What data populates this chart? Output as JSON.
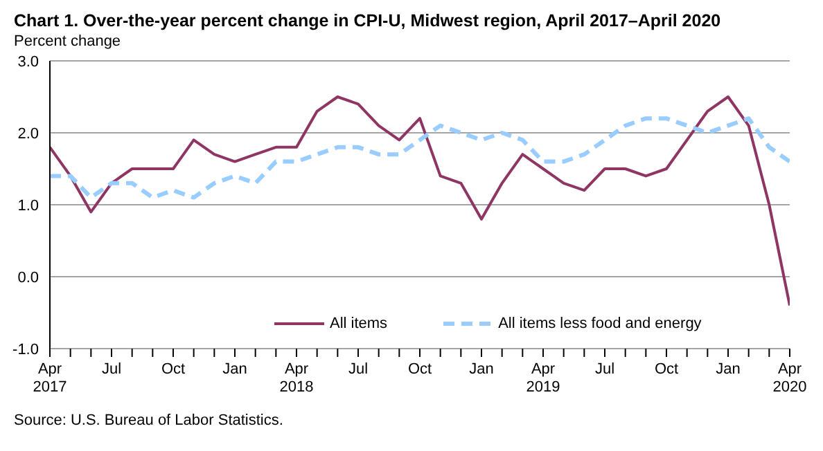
{
  "chart_data": {
    "type": "line",
    "title": "Chart 1. Over-the-year percent change in CPI-U, Midwest region, April 2017–April 2020",
    "ylabel": "Percent change",
    "categories": [
      "Apr 2017",
      null,
      null,
      "Jul",
      null,
      null,
      "Oct",
      null,
      null,
      "Jan",
      null,
      null,
      "Apr 2018",
      null,
      null,
      "Jul",
      null,
      null,
      "Oct",
      null,
      null,
      "Jan",
      null,
      null,
      "Apr 2019",
      null,
      null,
      "Jul",
      null,
      null,
      "Oct",
      null,
      null,
      "Jan",
      null,
      null,
      "Apr 2020"
    ],
    "series": [
      {
        "name": "All items",
        "color": "#8e3563",
        "line_style": "solid",
        "values": [
          1.8,
          1.4,
          0.9,
          1.3,
          1.5,
          1.5,
          1.5,
          1.9,
          1.7,
          1.6,
          1.7,
          1.8,
          1.8,
          2.3,
          2.5,
          2.4,
          2.1,
          1.9,
          2.2,
          1.4,
          1.3,
          0.8,
          1.3,
          1.7,
          1.5,
          1.3,
          1.2,
          1.5,
          1.5,
          1.4,
          1.5,
          1.9,
          2.3,
          2.5,
          2.1,
          1.0,
          -0.4
        ]
      },
      {
        "name": "All items less food and energy",
        "color": "#99ccff",
        "line_style": "dashed",
        "values": [
          1.4,
          1.4,
          1.1,
          1.3,
          1.3,
          1.1,
          1.2,
          1.1,
          1.3,
          1.4,
          1.3,
          1.6,
          1.6,
          1.7,
          1.8,
          1.8,
          1.7,
          1.7,
          1.9,
          2.1,
          2.0,
          1.9,
          2.0,
          1.9,
          1.6,
          1.6,
          1.7,
          1.9,
          2.1,
          2.2,
          2.2,
          2.1,
          2.0,
          2.1,
          2.2,
          1.8,
          1.6
        ]
      }
    ],
    "ylim": [
      -1,
      3
    ],
    "yticks": [
      {
        "value": -1,
        "label": "-1.0"
      },
      {
        "value": 0,
        "label": "0.0"
      },
      {
        "value": 1,
        "label": "1.0"
      },
      {
        "value": 2,
        "label": "2.0"
      },
      {
        "value": 3,
        "label": "3.0"
      }
    ],
    "grid": "y",
    "legend": "bottom",
    "marker": "none",
    "annotations": [
      "Source: U.S. Bureau of Labor Statistics."
    ]
  }
}
